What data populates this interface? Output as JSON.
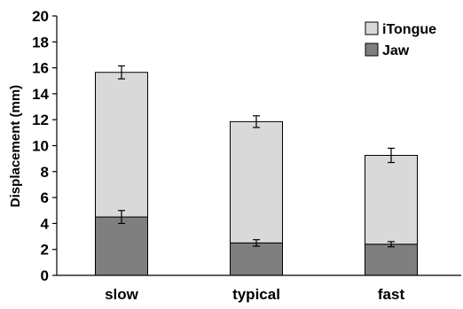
{
  "chart_data": {
    "type": "bar",
    "stacked": true,
    "categories": [
      "slow",
      "typical",
      "fast"
    ],
    "series": [
      {
        "name": "Jaw",
        "color": "#7f7f7f",
        "values": [
          4.5,
          2.5,
          2.4
        ],
        "error": [
          0.5,
          0.25,
          0.2
        ]
      },
      {
        "name": "iTongue",
        "color": "#d9d9d9",
        "values": [
          11.15,
          9.35,
          6.85
        ],
        "error": [
          0.5,
          0.45,
          0.55
        ]
      }
    ],
    "totals": [
      15.65,
      11.85,
      9.25
    ],
    "title": "",
    "xlabel": "",
    "ylabel": "Displacement (mm)",
    "ylim": [
      0,
      20
    ],
    "yticks": [
      "0",
      "2",
      "4",
      "6",
      "8",
      "10",
      "12",
      "14",
      "16",
      "18",
      "20"
    ],
    "legend_position": "top-right",
    "grid": false
  }
}
